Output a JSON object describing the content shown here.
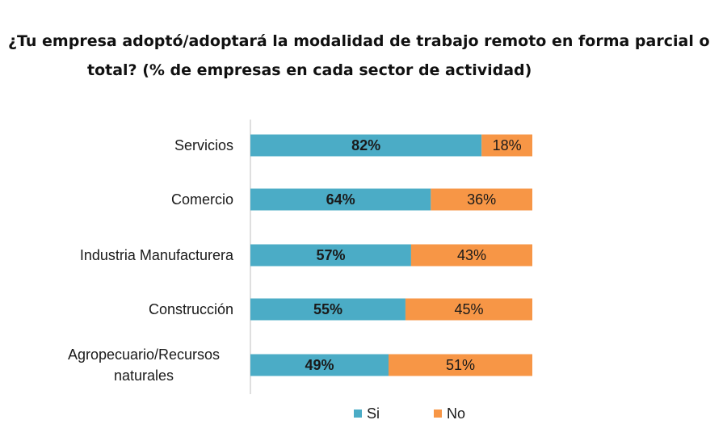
{
  "chart_data": {
    "type": "bar",
    "orientation": "horizontal",
    "stacked": true,
    "title": "¿Tu empresa adoptó/adoptará la modalidad de trabajo remoto en forma parcial o total? (% de empresas en cada sector de actividad)",
    "title_lines": [
      "¿Tu empresa adoptó/adoptará la modalidad de trabajo remoto en forma parcial o",
      "total? (% de empresas en cada sector de actividad)"
    ],
    "categories": [
      [
        "Servicios"
      ],
      [
        "Comercio"
      ],
      [
        "Industria Manufacturera"
      ],
      [
        "Construcción"
      ],
      [
        "Agropecuario/Recursos",
        "naturales"
      ]
    ],
    "series": [
      {
        "name": "Si",
        "color": "#4bacc6",
        "values": [
          82,
          64,
          57,
          55,
          49
        ]
      },
      {
        "name": "No",
        "color": "#f79646",
        "values": [
          18,
          36,
          43,
          45,
          51
        ]
      }
    ],
    "data_labels": [
      [
        "82%",
        "64%",
        "57%",
        "55%",
        "49%"
      ],
      [
        "18%",
        "36%",
        "43%",
        "45%",
        "51%"
      ]
    ],
    "xlim": [
      0,
      100
    ],
    "grid": false,
    "legend_position": "bottom"
  }
}
